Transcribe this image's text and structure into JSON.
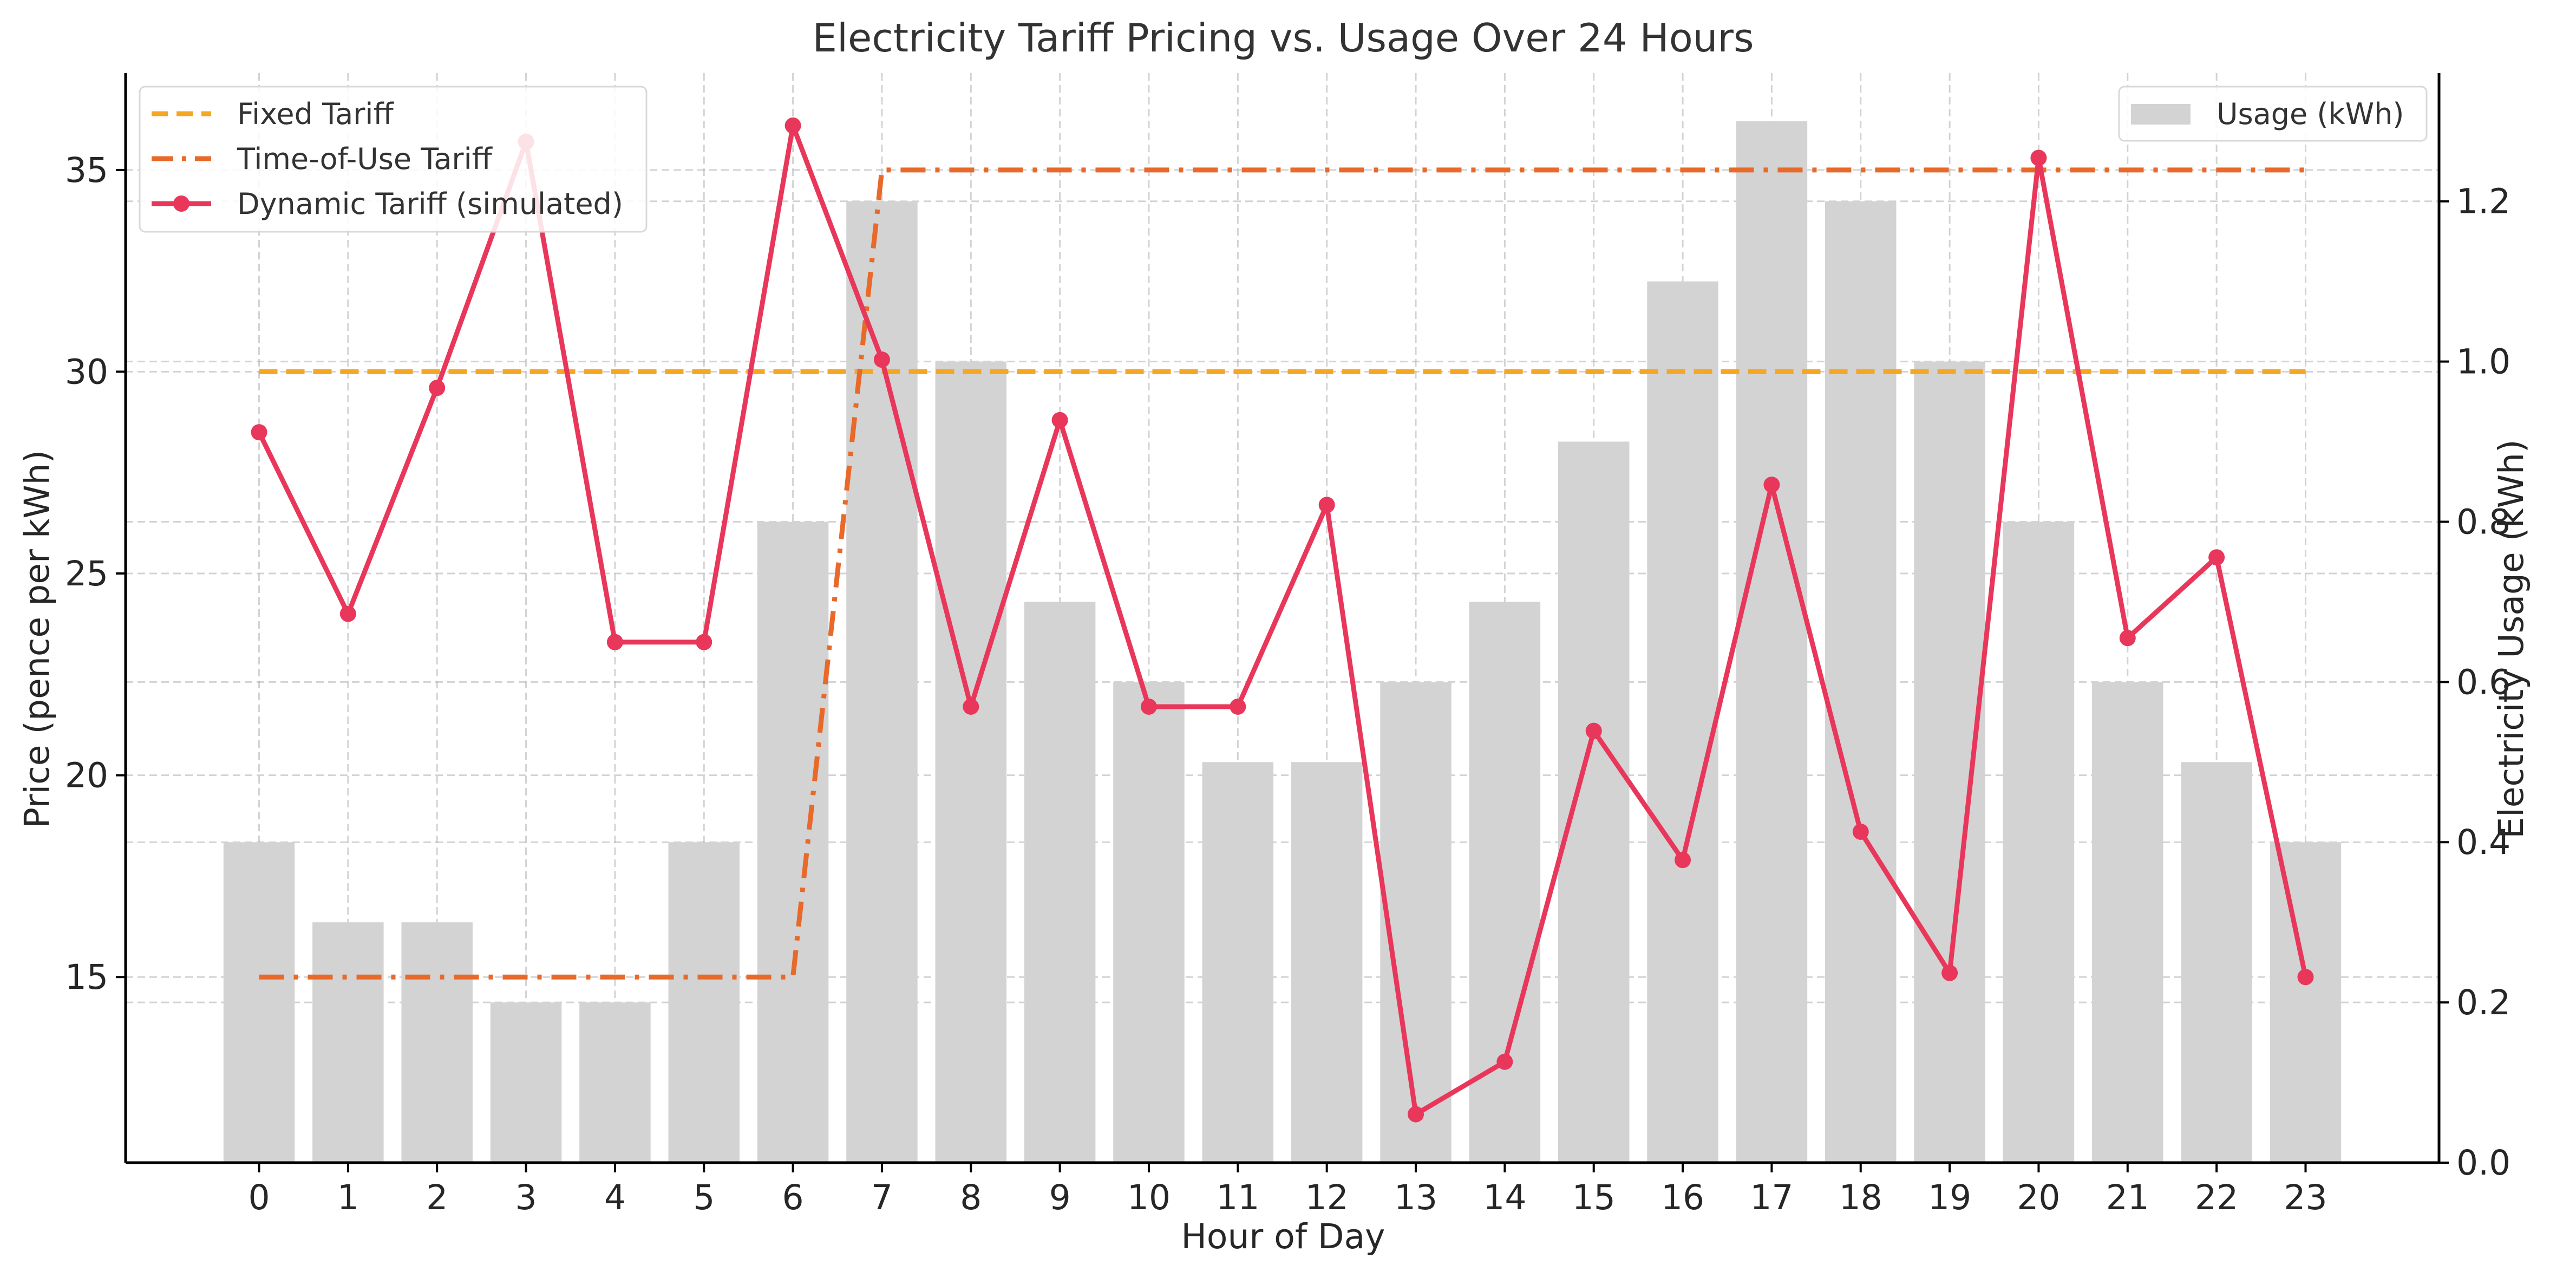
{
  "chart_data": {
    "type": "bar+line",
    "title": "Electricity Tariff Pricing vs. Usage Over 24 Hours",
    "xlabel": "Hour of Day",
    "ylabel_left": "Price (pence per kWh)",
    "ylabel_right": "Electricity Usage (kWh)",
    "x": [
      0,
      1,
      2,
      3,
      4,
      5,
      6,
      7,
      8,
      9,
      10,
      11,
      12,
      13,
      14,
      15,
      16,
      17,
      18,
      19,
      20,
      21,
      22,
      23
    ],
    "x_tick_labels": [
      "0",
      "1",
      "2",
      "3",
      "4",
      "5",
      "6",
      "7",
      "8",
      "9",
      "10",
      "11",
      "12",
      "13",
      "14",
      "15",
      "16",
      "17",
      "18",
      "19",
      "20",
      "21",
      "22",
      "23"
    ],
    "ylim_left": [
      10.4,
      37.4
    ],
    "yticks_left": [
      15,
      20,
      25,
      30,
      35
    ],
    "ytick_labels_left": [
      "15",
      "20",
      "25",
      "30",
      "35"
    ],
    "ylim_right": [
      0.0,
      1.36
    ],
    "yticks_right": [
      0.0,
      0.2,
      0.4,
      0.6,
      0.8,
      1.0,
      1.2
    ],
    "ytick_labels_right": [
      "0.0",
      "0.2",
      "0.4",
      "0.6",
      "0.8",
      "1.0",
      "1.2"
    ],
    "grid": true,
    "bars": {
      "name": "Usage (kWh)",
      "axis": "right",
      "color": "#d3d3d3",
      "values": [
        0.4,
        0.3,
        0.3,
        0.2,
        0.2,
        0.4,
        0.8,
        1.2,
        1.0,
        0.7,
        0.6,
        0.5,
        0.5,
        0.6,
        0.7,
        0.9,
        1.1,
        1.3,
        1.2,
        1.0,
        0.8,
        0.6,
        0.5,
        0.4
      ]
    },
    "series": [
      {
        "name": "Fixed Tariff",
        "axis": "left",
        "color": "#f5a623",
        "style": "dashed",
        "values": [
          30,
          30,
          30,
          30,
          30,
          30,
          30,
          30,
          30,
          30,
          30,
          30,
          30,
          30,
          30,
          30,
          30,
          30,
          30,
          30,
          30,
          30,
          30,
          30
        ]
      },
      {
        "name": "Time-of-Use Tariff",
        "axis": "left",
        "color": "#e8692a",
        "style": "dashdot",
        "values": [
          15,
          15,
          15,
          15,
          15,
          15,
          15,
          35,
          35,
          35,
          35,
          35,
          35,
          35,
          35,
          35,
          35,
          35,
          35,
          35,
          35,
          35,
          35,
          35
        ]
      },
      {
        "name": "Dynamic Tariff (simulated)",
        "axis": "left",
        "color": "#e8375a",
        "style": "solid-markers",
        "values": [
          28.5,
          24.0,
          29.6,
          35.7,
          23.3,
          23.3,
          36.1,
          30.3,
          21.7,
          28.8,
          21.7,
          21.7,
          26.7,
          11.6,
          12.9,
          21.1,
          17.9,
          27.2,
          18.6,
          15.1,
          35.3,
          23.4,
          25.4,
          15.0
        ]
      }
    ],
    "legend_left": {
      "placement": "top-left",
      "entries": [
        "Fixed Tariff",
        "Time-of-Use Tariff",
        "Dynamic Tariff (simulated)"
      ]
    },
    "legend_right": {
      "placement": "top-right",
      "entries": [
        "Usage (kWh)"
      ]
    }
  }
}
